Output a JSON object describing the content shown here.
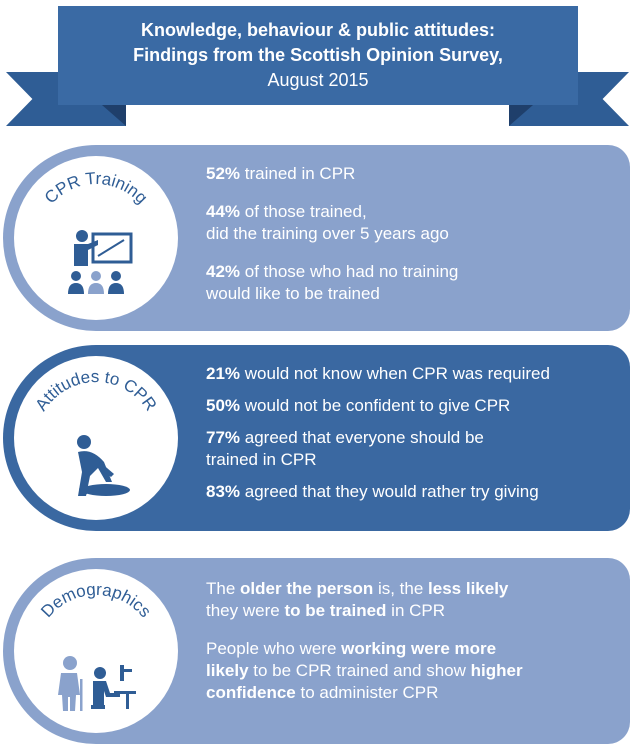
{
  "header": {
    "line1": "Knowledge, behaviour & public attitudes:",
    "line2": "Findings from the Scottish Opinion Survey,",
    "line3": "August 2015"
  },
  "colors": {
    "banner": "#3a6aa4",
    "panel_light": "#8aa2cc",
    "panel_dark": "#3a68a1",
    "text_on_panel": "#ffffff"
  },
  "sections": {
    "training": {
      "title": "CPR Training",
      "icon": "trainer-presentation-icon",
      "items": [
        {
          "pct": "52%",
          "text": " trained in CPR"
        },
        {
          "pct": "44%",
          "text": " of those trained,",
          "text2": "did the training over 5 years ago"
        },
        {
          "pct": "42%",
          "text": " of those who had no training",
          "text2": "would like to be trained"
        }
      ]
    },
    "attitudes": {
      "title": "Attitudes to CPR",
      "icon": "cpr-compression-icon",
      "items": [
        {
          "pct": "21%",
          "text": " would not know when CPR was required"
        },
        {
          "pct": "50%",
          "text": " would not be confident to give CPR"
        },
        {
          "pct": "77%",
          "text": " agreed that everyone should be",
          "text2": "trained in CPR"
        },
        {
          "pct": "83%",
          "text": " agreed that they would rather try giving"
        }
      ]
    },
    "demographics": {
      "title": "Demographics",
      "icon": "elderly-and-worker-icon",
      "p1": {
        "a": "The ",
        "b": "older the person",
        "c": " is, the ",
        "d": "less likely",
        "e": "they were ",
        "f": "to be trained",
        "g": " in CPR"
      },
      "p2": {
        "a": "People who were ",
        "b": "working were more",
        "c": "likely",
        "d": " to be CPR trained and show ",
        "e": "higher",
        "f": "confidence",
        "g": " to administer CPR"
      }
    }
  }
}
